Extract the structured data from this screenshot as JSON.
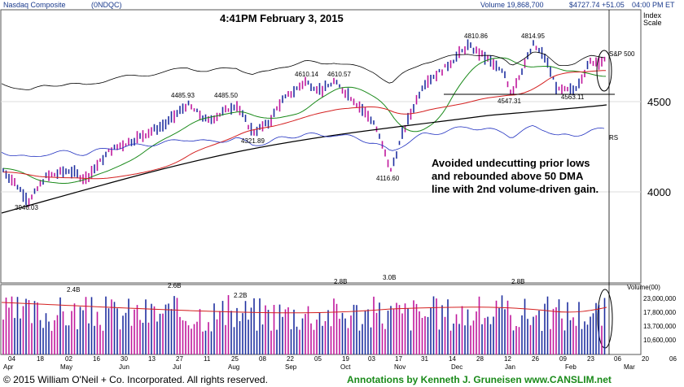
{
  "header": {
    "symbol_name": "Nasdaq Composite",
    "ticker": "(0NDQC)",
    "volume": "Volume 19,868,700",
    "price": "$4727.74 +51.05",
    "time": "04:00 PM ET"
  },
  "stamp": "4:41PM February 3, 2015",
  "index_scale_label": [
    "Index",
    "Scale"
  ],
  "sp500_label": "S&P 500",
  "rs_label": "RS",
  "annotation": [
    "Avoided undecutting prior lows",
    "and rebounded above 50 DMA",
    "line with 2nd volume-driven gain."
  ],
  "footer": {
    "copyright": "© 2015  William O'Neil + Co. Incorporated. All rights reserved.",
    "annotator": "Annotations by Kenneth J. Gruneisen www.CANSLIM.net"
  },
  "colors": {
    "up_bar": "#1f2fa0",
    "down_bar": "#c0189c",
    "ma50": "#1a8a1a",
    "ma200_red": "#d42020",
    "long_ma": "#000000",
    "rs_line": "#2030c0",
    "volume_avg": "#d42020",
    "bg": "#ffffff"
  },
  "chart_data": {
    "type": "line",
    "title": "Nasdaq Composite (0NDQC)",
    "x_tick_labels": [
      "04",
      "18",
      "02",
      "16",
      "30",
      "13",
      "27",
      "11",
      "25",
      "08",
      "22",
      "05",
      "19",
      "03",
      "17",
      "31",
      "14",
      "28",
      "12",
      "26",
      "09",
      "23",
      "06",
      "20",
      "06"
    ],
    "month_labels": [
      "Apr",
      "May",
      "Jun",
      "Jul",
      "Aug",
      "Sep",
      "Oct",
      "Nov",
      "Dec",
      "Jan",
      "Feb",
      "Mar"
    ],
    "y_ticks": [
      4000,
      4500
    ],
    "price_annotations": [
      {
        "label": "3946.03"
      },
      {
        "label": "4485.93"
      },
      {
        "label": "4485.50"
      },
      {
        "label": "4321.89"
      },
      {
        "label": "4610.14"
      },
      {
        "label": "4610.57"
      },
      {
        "label": "4116.60"
      },
      {
        "label": "4810.86"
      },
      {
        "label": "4814.95"
      },
      {
        "label": "4547.31"
      },
      {
        "label": "4563.11"
      }
    ],
    "volume_axis_label": "Volume(00)",
    "volume_ticks": [
      "23,000,000",
      "17,800,000",
      "13,700,000",
      "10,600,000"
    ],
    "volume_annotations": [
      "2.4B",
      "2.6B",
      "2.2B",
      "2.8B",
      "3.0B",
      "2.8B"
    ],
    "price_series_approx": [
      {
        "x": "Apr 04",
        "y": 4130
      },
      {
        "x": "Apr 18",
        "y": 4060
      },
      {
        "x": "May 02",
        "y": 4120
      },
      {
        "x": "May 16",
        "y": 4090
      },
      {
        "x": "May 30",
        "y": 4240
      },
      {
        "x": "Jun 13",
        "y": 4310
      },
      {
        "x": "Jun 27",
        "y": 4390
      },
      {
        "x": "Jul 11",
        "y": 4420
      },
      {
        "x": "Jul 25",
        "y": 4450
      },
      {
        "x": "Aug 08",
        "y": 4370
      },
      {
        "x": "Aug 22",
        "y": 4530
      },
      {
        "x": "Sep 05",
        "y": 4580
      },
      {
        "x": "Sep 19",
        "y": 4580
      },
      {
        "x": "Oct 03",
        "y": 4470
      },
      {
        "x": "Oct 17",
        "y": 4250
      },
      {
        "x": "Oct 31",
        "y": 4630
      },
      {
        "x": "Nov 14",
        "y": 4690
      },
      {
        "x": "Nov 28",
        "y": 4790
      },
      {
        "x": "Dec 12",
        "y": 4650
      },
      {
        "x": "Dec 26",
        "y": 4800
      },
      {
        "x": "Jan 09",
        "y": 4700
      },
      {
        "x": "Jan 23",
        "y": 4750
      },
      {
        "x": "Feb 03",
        "y": 4727
      }
    ]
  }
}
